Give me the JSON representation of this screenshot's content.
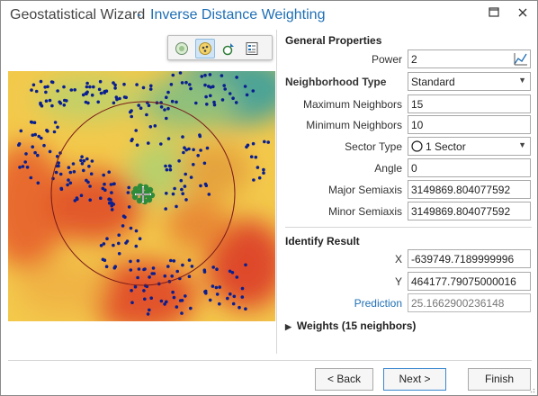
{
  "window": {
    "title": "Geostatistical Wizard",
    "separator": "-",
    "subtitle": "Inverse Distance Weighting",
    "minimize_icon": "minimize-icon",
    "close_icon": "close-icon"
  },
  "map_toolbar": {
    "tools": [
      "globe-icon",
      "points-icon",
      "layers-icon",
      "legend-icon"
    ],
    "active_tool": "points-icon"
  },
  "general": {
    "header": "General Properties",
    "power_label": "Power",
    "power_value": "2",
    "neighborhood_label": "Neighborhood Type",
    "neighborhood_value": "Standard",
    "max_neighbors_label": "Maximum Neighbors",
    "max_neighbors_value": "15",
    "min_neighbors_label": "Minimum Neighbors",
    "min_neighbors_value": "10",
    "sector_label": "Sector Type",
    "sector_value": "1 Sector",
    "angle_label": "Angle",
    "angle_value": "0",
    "major_label": "Major Semiaxis",
    "major_value": "3149869.804077592",
    "minor_label": "Minor Semiaxis",
    "minor_value": "3149869.804077592"
  },
  "identify": {
    "header": "Identify Result",
    "x_label": "X",
    "x_value": "-639749.7189999996",
    "y_label": "Y",
    "y_value": "464177.79075000016",
    "prediction_label": "Prediction",
    "prediction_value": "25.1662900236148"
  },
  "weights": {
    "label": "Weights (15 neighbors)"
  },
  "footer": {
    "back_label": "< Back",
    "next_label": "Next >",
    "finish_label": "Finish"
  },
  "colors": {
    "accent": "#1f6fb5",
    "points": "#0a1f8f",
    "neighbors": "#2e8b3a",
    "circle": "#7a1a1a"
  }
}
